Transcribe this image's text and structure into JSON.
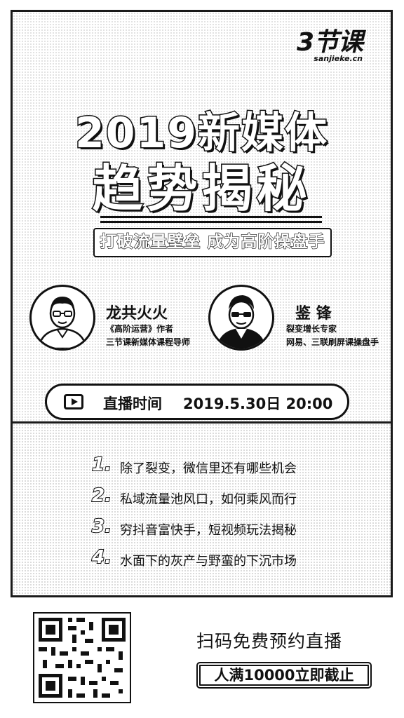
{
  "logo": {
    "mark": "3节课",
    "domain": "sanjieke.cn"
  },
  "title": {
    "line1": "2019新媒体",
    "line2": "趋势揭秘"
  },
  "subtitle": "打破流量壁垒 成为高阶操盘手",
  "speakers": [
    {
      "name": "龙共火火",
      "desc1": "《高阶运营》作者",
      "desc2": "三节课新媒体课程导师"
    },
    {
      "name": "鉴 锋",
      "desc1": "裂变增长专家",
      "desc2": "网易、三联刷屏课操盘手"
    }
  ],
  "live": {
    "icon": "play-icon",
    "label": "直播时间",
    "time": "2019.5.30日 20:00"
  },
  "topics": [
    {
      "num": "1.",
      "text": "除了裂变，微信里还有哪些机会"
    },
    {
      "num": "2.",
      "text": "私域流量池风口，如何乘风而行"
    },
    {
      "num": "3.",
      "text": "穷抖音富快手，短视频玩法揭秘"
    },
    {
      "num": "4.",
      "text": "水面下的灰产与野蛮的下沉市场"
    }
  ],
  "cta": {
    "main": "扫码免费预约直播",
    "badge": "人满10000立即截止"
  }
}
